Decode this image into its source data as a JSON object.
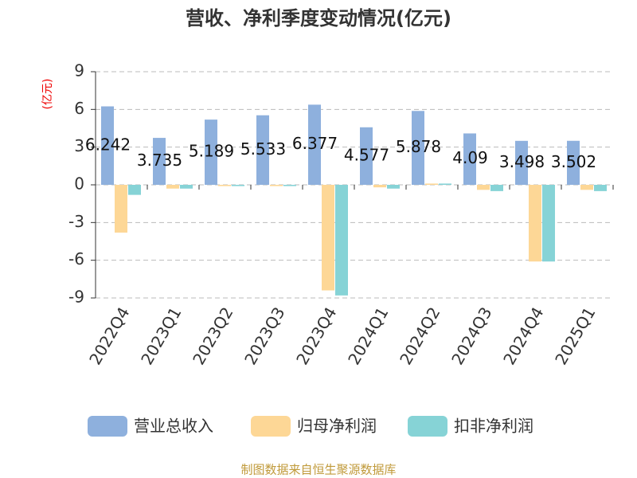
{
  "chart_data": {
    "type": "bar",
    "title": "营收、净利季度变动情况(亿元)",
    "y_label": "(亿元)",
    "categories": [
      "2022Q4",
      "2023Q1",
      "2023Q2",
      "2023Q3",
      "2023Q4",
      "2024Q1",
      "2024Q2",
      "2024Q3",
      "2024Q4",
      "2025Q1"
    ],
    "series": [
      {
        "name": "营业总收入",
        "color": "#8eb0dd",
        "values": [
          6.242,
          3.735,
          5.189,
          5.533,
          6.377,
          4.577,
          5.878,
          4.09,
          3.498,
          3.502
        ]
      },
      {
        "name": "归母净利润",
        "color": "#fdd796",
        "values": [
          -3.8,
          -0.3,
          -0.1,
          -0.1,
          -8.4,
          -0.2,
          0.1,
          -0.4,
          -6.1,
          -0.4
        ]
      },
      {
        "name": "扣非净利润",
        "color": "#86d3d6",
        "values": [
          -0.8,
          -0.3,
          -0.1,
          -0.1,
          -8.8,
          -0.3,
          0.1,
          -0.5,
          -6.1,
          -0.5
        ]
      }
    ],
    "ylim": [
      -9,
      9
    ],
    "yticks": [
      -9,
      -6,
      -3,
      0,
      3,
      6,
      9
    ],
    "grid": true,
    "source": "制图数据来自恒生聚源数据库"
  }
}
